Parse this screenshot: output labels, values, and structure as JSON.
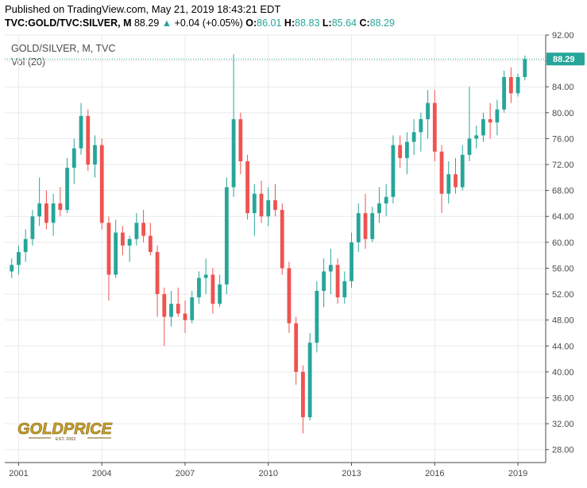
{
  "header": {
    "published": "Published on TradingView.com, May 21, 2019 18:43:21 EDT",
    "symbol": "TVC:GOLD/TVC:SILVER, M",
    "last": "88.29",
    "change_arrow": "▲",
    "change": "+0.04 (+0.05%)",
    "o_label": "O:",
    "o_value": "86.01",
    "h_label": "H:",
    "h_value": "88.83",
    "l_label": "L:",
    "l_value": "85.64",
    "c_label": "C:",
    "c_value": "88.29"
  },
  "pane": {
    "pair_title": "GOLD/SILVER, M, TVC",
    "vol_label": "Vol (20)",
    "price_tag": "88.29"
  },
  "logo": {
    "text": "GOLDPRICE",
    "sub": "EST. 2002"
  },
  "colors": {
    "up": "#26a69a",
    "down": "#ef5350",
    "gold": "#c9a227",
    "grid": "#e9e9e9"
  },
  "chart_data": {
    "type": "candlestick",
    "interval": "monthly (shown as quarterly approximation)",
    "ylim": [
      26,
      92
    ],
    "yticks": [
      "28.00",
      "32.00",
      "36.00",
      "40.00",
      "44.00",
      "48.00",
      "52.00",
      "56.00",
      "60.00",
      "64.00",
      "68.00",
      "72.00",
      "76.00",
      "80.00",
      "84.00",
      "88.00",
      "92.00"
    ],
    "xticks": [
      {
        "label": "2001",
        "year": 2001
      },
      {
        "label": "2004",
        "year": 2004
      },
      {
        "label": "2007",
        "year": 2007
      },
      {
        "label": "2010",
        "year": 2010
      },
      {
        "label": "2013",
        "year": 2013
      },
      {
        "label": "2016",
        "year": 2016
      },
      {
        "label": "2019",
        "year": 2019
      }
    ],
    "x_range": [
      2000.5,
      2020.0
    ],
    "last_price": 88.29,
    "candles": [
      {
        "t": 2000.75,
        "o": 55.5,
        "h": 57.5,
        "l": 54.5,
        "c": 56.5
      },
      {
        "t": 2001.0,
        "o": 56.5,
        "h": 59.5,
        "l": 55.0,
        "c": 58.5
      },
      {
        "t": 2001.25,
        "o": 58.5,
        "h": 62.0,
        "l": 57.0,
        "c": 60.5
      },
      {
        "t": 2001.5,
        "o": 60.5,
        "h": 65.0,
        "l": 59.5,
        "c": 64.0
      },
      {
        "t": 2001.75,
        "o": 64.0,
        "h": 70.0,
        "l": 62.5,
        "c": 66.0
      },
      {
        "t": 2002.0,
        "o": 66.0,
        "h": 68.0,
        "l": 62.0,
        "c": 63.0
      },
      {
        "t": 2002.25,
        "o": 63.0,
        "h": 67.5,
        "l": 61.0,
        "c": 66.0
      },
      {
        "t": 2002.5,
        "o": 66.0,
        "h": 68.5,
        "l": 64.0,
        "c": 65.0
      },
      {
        "t": 2002.75,
        "o": 65.0,
        "h": 73.0,
        "l": 64.5,
        "c": 71.5
      },
      {
        "t": 2003.0,
        "o": 71.5,
        "h": 76.0,
        "l": 69.0,
        "c": 74.5
      },
      {
        "t": 2003.25,
        "o": 74.5,
        "h": 81.5,
        "l": 73.5,
        "c": 79.5
      },
      {
        "t": 2003.5,
        "o": 79.5,
        "h": 80.5,
        "l": 71.0,
        "c": 72.0
      },
      {
        "t": 2003.75,
        "o": 72.0,
        "h": 76.5,
        "l": 70.0,
        "c": 75.0
      },
      {
        "t": 2004.0,
        "o": 75.0,
        "h": 76.0,
        "l": 62.0,
        "c": 63.0
      },
      {
        "t": 2004.25,
        "o": 63.0,
        "h": 64.0,
        "l": 51.0,
        "c": 55.0
      },
      {
        "t": 2004.5,
        "o": 55.0,
        "h": 63.5,
        "l": 54.5,
        "c": 61.5
      },
      {
        "t": 2004.75,
        "o": 61.5,
        "h": 62.5,
        "l": 58.0,
        "c": 59.5
      },
      {
        "t": 2005.0,
        "o": 59.5,
        "h": 61.0,
        "l": 57.0,
        "c": 60.5
      },
      {
        "t": 2005.25,
        "o": 60.5,
        "h": 64.5,
        "l": 59.5,
        "c": 63.0
      },
      {
        "t": 2005.5,
        "o": 63.0,
        "h": 65.0,
        "l": 60.0,
        "c": 61.0
      },
      {
        "t": 2005.75,
        "o": 61.0,
        "h": 63.0,
        "l": 58.0,
        "c": 58.5
      },
      {
        "t": 2006.0,
        "o": 58.5,
        "h": 59.5,
        "l": 48.5,
        "c": 52.0
      },
      {
        "t": 2006.25,
        "o": 52.0,
        "h": 53.0,
        "l": 44.0,
        "c": 48.5
      },
      {
        "t": 2006.5,
        "o": 48.5,
        "h": 52.5,
        "l": 47.0,
        "c": 50.5
      },
      {
        "t": 2006.75,
        "o": 50.5,
        "h": 53.0,
        "l": 48.5,
        "c": 49.0
      },
      {
        "t": 2007.0,
        "o": 49.0,
        "h": 51.0,
        "l": 46.0,
        "c": 48.0
      },
      {
        "t": 2007.25,
        "o": 48.0,
        "h": 52.5,
        "l": 47.5,
        "c": 51.5
      },
      {
        "t": 2007.5,
        "o": 51.5,
        "h": 55.5,
        "l": 50.5,
        "c": 54.5
      },
      {
        "t": 2007.75,
        "o": 54.5,
        "h": 57.5,
        "l": 52.0,
        "c": 55.0
      },
      {
        "t": 2008.0,
        "o": 55.0,
        "h": 56.0,
        "l": 49.0,
        "c": 50.5
      },
      {
        "t": 2008.25,
        "o": 50.5,
        "h": 55.0,
        "l": 50.0,
        "c": 53.5
      },
      {
        "t": 2008.5,
        "o": 53.5,
        "h": 70.0,
        "l": 52.0,
        "c": 68.5
      },
      {
        "t": 2008.75,
        "o": 68.5,
        "h": 89.0,
        "l": 67.0,
        "c": 79.0
      },
      {
        "t": 2009.0,
        "o": 79.0,
        "h": 80.0,
        "l": 70.5,
        "c": 72.5
      },
      {
        "t": 2009.25,
        "o": 72.5,
        "h": 73.5,
        "l": 63.5,
        "c": 64.5
      },
      {
        "t": 2009.5,
        "o": 64.5,
        "h": 69.0,
        "l": 61.0,
        "c": 67.5
      },
      {
        "t": 2009.75,
        "o": 67.5,
        "h": 69.5,
        "l": 63.0,
        "c": 64.0
      },
      {
        "t": 2010.0,
        "o": 64.0,
        "h": 68.5,
        "l": 62.5,
        "c": 66.5
      },
      {
        "t": 2010.25,
        "o": 66.5,
        "h": 69.0,
        "l": 64.0,
        "c": 65.0
      },
      {
        "t": 2010.5,
        "o": 65.0,
        "h": 66.0,
        "l": 55.0,
        "c": 56.0
      },
      {
        "t": 2010.75,
        "o": 56.0,
        "h": 57.0,
        "l": 46.0,
        "c": 47.5
      },
      {
        "t": 2011.0,
        "o": 47.5,
        "h": 48.5,
        "l": 38.0,
        "c": 40.0
      },
      {
        "t": 2011.25,
        "o": 40.0,
        "h": 41.0,
        "l": 30.5,
        "c": 33.0
      },
      {
        "t": 2011.5,
        "o": 33.0,
        "h": 46.0,
        "l": 32.5,
        "c": 44.5
      },
      {
        "t": 2011.75,
        "o": 44.5,
        "h": 54.0,
        "l": 43.0,
        "c": 52.5
      },
      {
        "t": 2012.0,
        "o": 52.5,
        "h": 57.5,
        "l": 50.0,
        "c": 55.5
      },
      {
        "t": 2012.25,
        "o": 55.5,
        "h": 59.0,
        "l": 52.0,
        "c": 56.5
      },
      {
        "t": 2012.5,
        "o": 56.5,
        "h": 57.5,
        "l": 50.5,
        "c": 51.5
      },
      {
        "t": 2012.75,
        "o": 51.5,
        "h": 55.5,
        "l": 50.5,
        "c": 54.0
      },
      {
        "t": 2013.0,
        "o": 54.0,
        "h": 61.5,
        "l": 53.0,
        "c": 60.0
      },
      {
        "t": 2013.25,
        "o": 60.0,
        "h": 66.0,
        "l": 58.5,
        "c": 64.5
      },
      {
        "t": 2013.5,
        "o": 64.5,
        "h": 67.5,
        "l": 59.0,
        "c": 60.5
      },
      {
        "t": 2013.75,
        "o": 60.5,
        "h": 65.5,
        "l": 60.0,
        "c": 64.5
      },
      {
        "t": 2014.0,
        "o": 64.5,
        "h": 68.5,
        "l": 63.0,
        "c": 66.0
      },
      {
        "t": 2014.25,
        "o": 66.0,
        "h": 69.0,
        "l": 64.0,
        "c": 67.0
      },
      {
        "t": 2014.5,
        "o": 67.0,
        "h": 76.5,
        "l": 66.0,
        "c": 75.0
      },
      {
        "t": 2014.75,
        "o": 75.0,
        "h": 76.5,
        "l": 71.5,
        "c": 73.0
      },
      {
        "t": 2015.0,
        "o": 73.0,
        "h": 77.0,
        "l": 70.5,
        "c": 75.5
      },
      {
        "t": 2015.25,
        "o": 75.5,
        "h": 79.0,
        "l": 73.5,
        "c": 77.0
      },
      {
        "t": 2015.5,
        "o": 77.0,
        "h": 80.0,
        "l": 74.0,
        "c": 79.0
      },
      {
        "t": 2015.75,
        "o": 79.0,
        "h": 83.5,
        "l": 76.0,
        "c": 81.5
      },
      {
        "t": 2016.0,
        "o": 81.5,
        "h": 83.5,
        "l": 72.5,
        "c": 74.0
      },
      {
        "t": 2016.25,
        "o": 74.0,
        "h": 75.0,
        "l": 64.5,
        "c": 67.5
      },
      {
        "t": 2016.5,
        "o": 67.5,
        "h": 72.5,
        "l": 66.0,
        "c": 70.5
      },
      {
        "t": 2016.75,
        "o": 70.5,
        "h": 73.0,
        "l": 67.5,
        "c": 68.5
      },
      {
        "t": 2017.0,
        "o": 68.5,
        "h": 75.0,
        "l": 68.0,
        "c": 73.5
      },
      {
        "t": 2017.25,
        "o": 73.5,
        "h": 84.0,
        "l": 72.5,
        "c": 76.0
      },
      {
        "t": 2017.5,
        "o": 76.0,
        "h": 78.0,
        "l": 74.5,
        "c": 76.5
      },
      {
        "t": 2017.75,
        "o": 76.5,
        "h": 80.0,
        "l": 75.5,
        "c": 79.0
      },
      {
        "t": 2018.0,
        "o": 79.0,
        "h": 81.5,
        "l": 76.0,
        "c": 78.5
      },
      {
        "t": 2018.25,
        "o": 78.5,
        "h": 82.0,
        "l": 76.5,
        "c": 80.5
      },
      {
        "t": 2018.5,
        "o": 80.5,
        "h": 86.5,
        "l": 80.0,
        "c": 85.5
      },
      {
        "t": 2018.75,
        "o": 85.5,
        "h": 87.0,
        "l": 81.5,
        "c": 83.0
      },
      {
        "t": 2019.0,
        "o": 83.0,
        "h": 86.0,
        "l": 82.5,
        "c": 85.5
      },
      {
        "t": 2019.25,
        "o": 85.5,
        "h": 88.83,
        "l": 85.0,
        "c": 88.29
      }
    ]
  }
}
